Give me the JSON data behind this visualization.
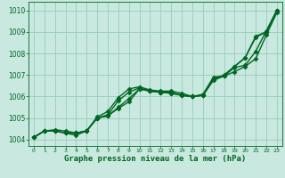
{
  "title": "Graphe pression niveau de la mer (hPa)",
  "background_color": "#c8e8e0",
  "grid_color": "#99ccbb",
  "line_color": "#006622",
  "xlim": [
    -0.5,
    23.5
  ],
  "ylim": [
    1003.7,
    1010.4
  ],
  "x_ticks": [
    0,
    1,
    2,
    3,
    4,
    5,
    6,
    7,
    8,
    9,
    10,
    11,
    12,
    13,
    14,
    15,
    16,
    17,
    18,
    19,
    20,
    21,
    22,
    23
  ],
  "y_ticks": [
    1004,
    1005,
    1006,
    1007,
    1008,
    1009,
    1010
  ],
  "series": [
    {
      "x": [
        0,
        1,
        2,
        3,
        4,
        5,
        6,
        7,
        8,
        9,
        10,
        11,
        12,
        13,
        14,
        15,
        16,
        17,
        18,
        19,
        20,
        21,
        22,
        23
      ],
      "y": [
        1004.1,
        1004.4,
        1004.4,
        1004.3,
        1004.3,
        1004.4,
        1005.05,
        1005.3,
        1005.95,
        1006.35,
        1006.45,
        1006.3,
        1006.25,
        1006.25,
        1006.15,
        1006.0,
        1006.1,
        1006.9,
        1006.95,
        1007.4,
        1007.8,
        1008.75,
        1009.0,
        1010.0
      ],
      "marker": "D",
      "markersize": 2.5,
      "linewidth": 1.0
    },
    {
      "x": [
        0,
        1,
        2,
        3,
        4,
        5,
        6,
        7,
        8,
        9,
        10,
        11,
        12,
        13,
        14,
        15,
        16,
        17,
        18,
        19,
        20,
        21,
        22,
        23
      ],
      "y": [
        1004.1,
        1004.4,
        1004.4,
        1004.3,
        1004.2,
        1004.4,
        1005.0,
        1005.1,
        1005.5,
        1005.9,
        1006.35,
        1006.25,
        1006.2,
        1006.15,
        1006.05,
        1006.0,
        1006.05,
        1006.85,
        1006.95,
        1007.35,
        1007.45,
        1008.1,
        1009.05,
        1010.0
      ],
      "marker": "D",
      "markersize": 2.5,
      "linewidth": 1.0
    },
    {
      "x": [
        0,
        1,
        2,
        3,
        4,
        5,
        6,
        7,
        8,
        9,
        10,
        11,
        12,
        13,
        14,
        15,
        16,
        17,
        18,
        19,
        20,
        21,
        22,
        23
      ],
      "y": [
        1004.1,
        1004.4,
        1004.45,
        1004.4,
        1004.3,
        1004.4,
        1005.0,
        1005.1,
        1005.45,
        1005.75,
        1006.35,
        1006.25,
        1006.2,
        1006.2,
        1006.05,
        1006.0,
        1006.05,
        1006.75,
        1006.95,
        1007.15,
        1007.4,
        1007.75,
        1008.85,
        1009.9
      ],
      "marker": "D",
      "markersize": 2.5,
      "linewidth": 1.0
    },
    {
      "x": [
        0,
        1,
        2,
        3,
        4,
        5,
        6,
        7,
        8,
        9,
        10,
        11,
        12,
        13,
        14,
        15,
        16,
        17,
        18,
        19,
        20,
        21,
        22,
        23
      ],
      "y": [
        1004.1,
        1004.4,
        1004.4,
        1004.3,
        1004.3,
        1004.4,
        1005.0,
        1005.15,
        1005.8,
        1006.2,
        1006.4,
        1006.25,
        1006.2,
        1006.15,
        1006.05,
        1006.0,
        1006.05,
        1006.8,
        1007.0,
        1007.4,
        1007.8,
        1008.8,
        1009.0,
        1010.0
      ],
      "marker": "D",
      "markersize": 2.5,
      "linewidth": 1.0
    }
  ],
  "ylabel_fontsize": 5.5,
  "xlabel_fontsize": 6.5,
  "xtick_fontsize": 4.5,
  "ytick_fontsize": 5.5
}
